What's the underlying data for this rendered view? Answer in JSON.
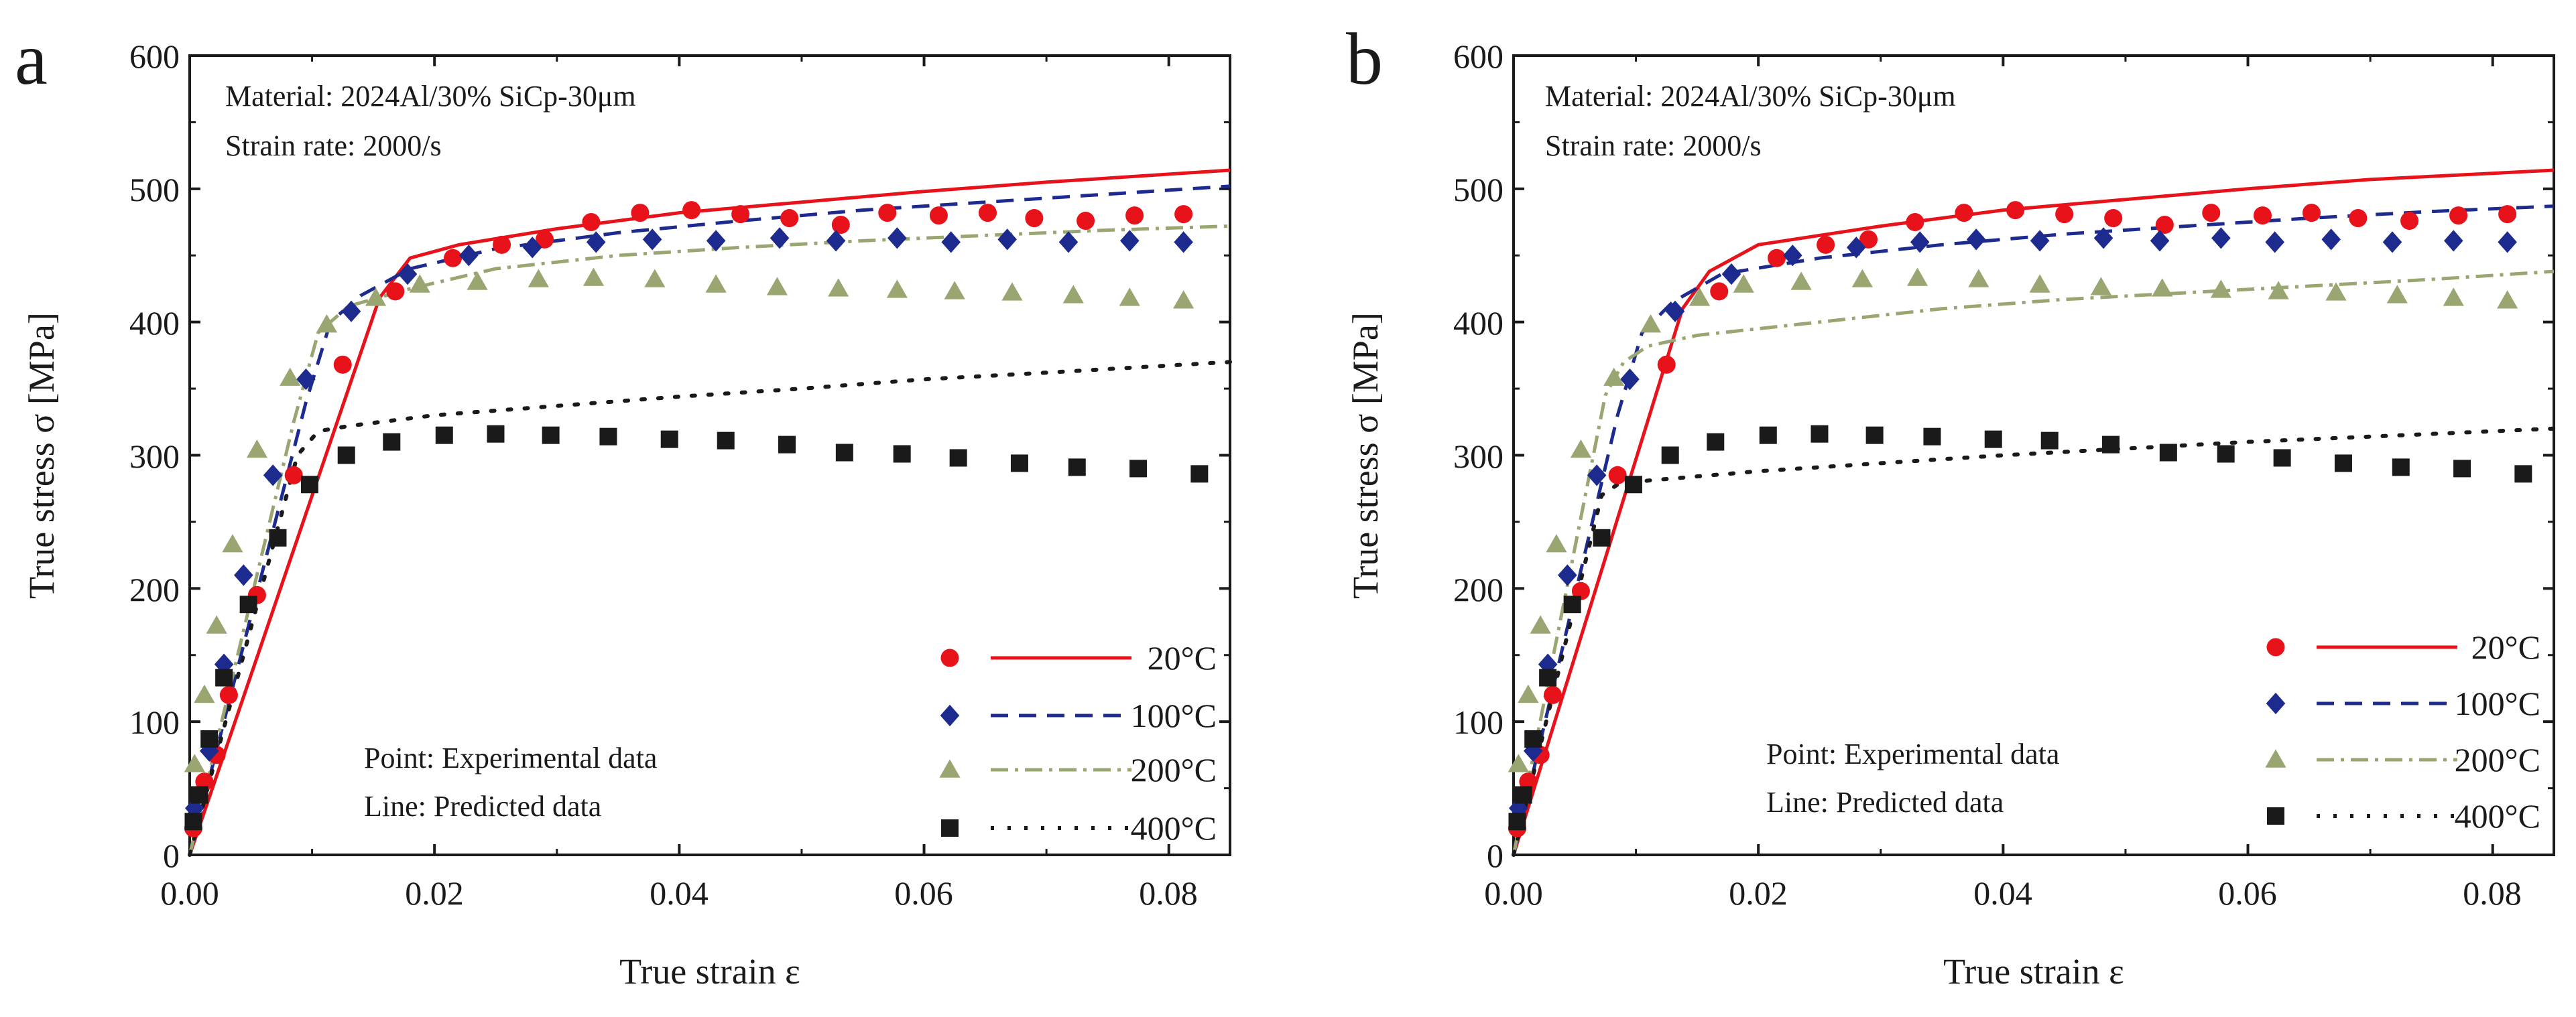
{
  "colors": {
    "c20": "#e8121b",
    "c100": "#1d2b8f",
    "c200": "#9aa672",
    "c400": "#1a1a1a",
    "axis": "#1a1a1a"
  },
  "chart_data": [
    {
      "panel": "a",
      "type": "scatter+line",
      "xlabel": "True strain ε",
      "ylabel": "True stress σ [MPa]",
      "xlim": [
        0,
        0.085
      ],
      "ylim": [
        0,
        600
      ],
      "xticks": [
        "0.00",
        "0.02",
        "0.04",
        "0.06",
        "0.08"
      ],
      "yticks": [
        "0",
        "100",
        "200",
        "300",
        "400",
        "500",
        "600"
      ],
      "annotations": [
        "Material: 2024Al/30% SiCp-30μm",
        "Strain rate: 2000/s"
      ],
      "notes": [
        "Point: Experimental data",
        "Line: Predicted data"
      ],
      "legend": [
        "20°C",
        "100°C",
        "200°C",
        "400°C"
      ],
      "experimental": [
        {
          "name": "20°C",
          "marker": "circle",
          "x": [
            0.0003,
            0.0012,
            0.0022,
            0.0032,
            0.0055,
            0.0085,
            0.0125,
            0.0168,
            0.0215,
            0.0255,
            0.029,
            0.0328,
            0.0368,
            0.041,
            0.045,
            0.049,
            0.0532,
            0.057,
            0.0612,
            0.0652,
            0.069,
            0.0732,
            0.0772,
            0.0812
          ],
          "y": [
            20,
            55,
            75,
            120,
            195,
            285,
            368,
            423,
            448,
            458,
            462,
            475,
            482,
            484,
            481,
            478,
            473,
            482,
            480,
            482,
            478,
            476,
            480,
            481
          ]
        },
        {
          "name": "100°C",
          "marker": "diamond",
          "x": [
            0.0004,
            0.0016,
            0.0028,
            0.0044,
            0.0068,
            0.0095,
            0.0132,
            0.0178,
            0.0228,
            0.028,
            0.0332,
            0.0378,
            0.043,
            0.0482,
            0.0528,
            0.0578,
            0.0622,
            0.0668,
            0.0718,
            0.0768,
            0.0812
          ],
          "y": [
            35,
            78,
            143,
            210,
            285,
            357,
            408,
            436,
            450,
            456,
            460,
            462,
            461,
            463,
            461,
            463,
            460,
            462,
            460,
            461,
            460
          ]
        },
        {
          "name": "200°C",
          "marker": "triangle",
          "x": [
            0.0004,
            0.0012,
            0.0022,
            0.0035,
            0.0055,
            0.0082,
            0.0112,
            0.0152,
            0.0188,
            0.0235,
            0.0285,
            0.033,
            0.038,
            0.043,
            0.048,
            0.053,
            0.0578,
            0.0625,
            0.0672,
            0.0722,
            0.0768,
            0.0812
          ],
          "y": [
            68,
            120,
            172,
            233,
            304,
            358,
            398,
            418,
            428,
            430,
            432,
            433,
            432,
            428,
            426,
            425,
            424,
            423,
            422,
            420,
            418,
            416
          ]
        },
        {
          "name": "400°C",
          "marker": "square",
          "x": [
            0.0003,
            0.0008,
            0.0016,
            0.0028,
            0.0048,
            0.0072,
            0.0098,
            0.0128,
            0.0165,
            0.0208,
            0.025,
            0.0295,
            0.0342,
            0.0392,
            0.0438,
            0.0488,
            0.0535,
            0.0582,
            0.0628,
            0.0678,
            0.0725,
            0.0775,
            0.0825
          ],
          "y": [
            25,
            45,
            87,
            133,
            188,
            238,
            278,
            300,
            310,
            315,
            316,
            315,
            314,
            312,
            311,
            308,
            302,
            301,
            298,
            294,
            291,
            290,
            286
          ]
        }
      ],
      "predicted": [
        {
          "name": "20°C",
          "style": "solid",
          "x": [
            0,
            0.0155,
            0.018,
            0.022,
            0.03,
            0.04,
            0.05,
            0.06,
            0.07,
            0.085
          ],
          "y": [
            0,
            418,
            448,
            458,
            470,
            482,
            490,
            498,
            505,
            514
          ]
        },
        {
          "name": "100°C",
          "style": "dashed",
          "x": [
            0,
            0.0095,
            0.0115,
            0.014,
            0.018,
            0.025,
            0.035,
            0.045,
            0.055,
            0.065,
            0.075,
            0.085
          ],
          "y": [
            0,
            340,
            400,
            420,
            440,
            455,
            467,
            476,
            484,
            490,
            496,
            502
          ]
        },
        {
          "name": "200°C",
          "style": "dashdot",
          "x": [
            0,
            0.0085,
            0.0105,
            0.013,
            0.018,
            0.025,
            0.035,
            0.045,
            0.055,
            0.065,
            0.075,
            0.085
          ],
          "y": [
            0,
            325,
            392,
            412,
            425,
            440,
            450,
            456,
            461,
            465,
            469,
            472
          ]
        },
        {
          "name": "400°C",
          "style": "dotted",
          "x": [
            0,
            0.0088,
            0.0105,
            0.013,
            0.02,
            0.03,
            0.04,
            0.05,
            0.06,
            0.07,
            0.085
          ],
          "y": [
            0,
            300,
            318,
            322,
            330,
            337,
            344,
            350,
            357,
            362,
            370
          ]
        }
      ]
    },
    {
      "panel": "b",
      "type": "scatter+line",
      "xlabel": "True strain ε",
      "ylabel": "True stress σ [MPa]",
      "xlim": [
        0,
        0.085
      ],
      "ylim": [
        0,
        600
      ],
      "xticks": [
        "0.00",
        "0.02",
        "0.04",
        "0.06",
        "0.08"
      ],
      "yticks": [
        "0",
        "100",
        "200",
        "300",
        "400",
        "500",
        "600"
      ],
      "annotations": [
        "Material: 2024Al/30% SiCp-30μm",
        "Strain rate: 2000/s"
      ],
      "notes": [
        "Point: Experimental data",
        "Line: Predicted data"
      ],
      "legend": [
        "20°C",
        "100°C",
        "200°C",
        "400°C"
      ],
      "experimental": [
        {
          "name": "20°C",
          "marker": "circle",
          "x": [
            0.0003,
            0.0012,
            0.0022,
            0.0032,
            0.0055,
            0.0085,
            0.0125,
            0.0168,
            0.0215,
            0.0255,
            0.029,
            0.0328,
            0.0368,
            0.041,
            0.045,
            0.049,
            0.0532,
            0.057,
            0.0612,
            0.0652,
            0.069,
            0.0732,
            0.0772,
            0.0812
          ],
          "y": [
            20,
            55,
            75,
            120,
            198,
            285,
            368,
            423,
            448,
            458,
            462,
            475,
            482,
            484,
            481,
            478,
            473,
            482,
            480,
            482,
            478,
            476,
            480,
            481
          ]
        },
        {
          "name": "100°C",
          "marker": "diamond",
          "x": [
            0.0004,
            0.0016,
            0.0028,
            0.0044,
            0.0068,
            0.0095,
            0.0132,
            0.0178,
            0.0228,
            0.028,
            0.0332,
            0.0378,
            0.043,
            0.0482,
            0.0528,
            0.0578,
            0.0622,
            0.0668,
            0.0718,
            0.0768,
            0.0812
          ],
          "y": [
            35,
            78,
            143,
            210,
            285,
            357,
            408,
            436,
            450,
            456,
            460,
            462,
            461,
            463,
            461,
            463,
            460,
            462,
            460,
            461,
            460
          ]
        },
        {
          "name": "200°C",
          "marker": "triangle",
          "x": [
            0.0004,
            0.0012,
            0.0022,
            0.0035,
            0.0055,
            0.0082,
            0.0112,
            0.0152,
            0.0188,
            0.0235,
            0.0285,
            0.033,
            0.038,
            0.043,
            0.048,
            0.053,
            0.0578,
            0.0625,
            0.0672,
            0.0722,
            0.0768,
            0.0812
          ],
          "y": [
            68,
            120,
            172,
            233,
            304,
            358,
            398,
            418,
            428,
            430,
            432,
            433,
            432,
            428,
            426,
            425,
            424,
            423,
            422,
            420,
            418,
            416
          ]
        },
        {
          "name": "400°C",
          "marker": "square",
          "x": [
            0.0003,
            0.0008,
            0.0016,
            0.0028,
            0.0048,
            0.0072,
            0.0098,
            0.0128,
            0.0165,
            0.0208,
            0.025,
            0.0295,
            0.0342,
            0.0392,
            0.0438,
            0.0488,
            0.0535,
            0.0582,
            0.0628,
            0.0678,
            0.0725,
            0.0775,
            0.0825
          ],
          "y": [
            25,
            45,
            87,
            133,
            188,
            238,
            278,
            300,
            310,
            315,
            316,
            315,
            314,
            312,
            311,
            308,
            302,
            301,
            298,
            294,
            291,
            290,
            286
          ]
        }
      ],
      "predicted": [
        {
          "name": "20°C",
          "style": "solid",
          "x": [
            0,
            0.0138,
            0.016,
            0.02,
            0.03,
            0.04,
            0.05,
            0.06,
            0.07,
            0.085
          ],
          "y": [
            0,
            410,
            438,
            458,
            472,
            484,
            492,
            500,
            507,
            514
          ]
        },
        {
          "name": "100°C",
          "style": "dashed",
          "x": [
            0,
            0.0085,
            0.0105,
            0.013,
            0.017,
            0.025,
            0.035,
            0.045,
            0.055,
            0.065,
            0.075,
            0.085
          ],
          "y": [
            0,
            330,
            392,
            415,
            436,
            448,
            458,
            466,
            472,
            478,
            483,
            487
          ]
        },
        {
          "name": "200°C",
          "style": "dashdot",
          "x": [
            0,
            0.0075,
            0.009,
            0.011,
            0.015,
            0.025,
            0.035,
            0.045,
            0.055,
            0.065,
            0.075,
            0.085
          ],
          "y": [
            0,
            345,
            370,
            382,
            390,
            400,
            410,
            417,
            422,
            427,
            432,
            438
          ]
        },
        {
          "name": "400°C",
          "style": "dotted",
          "x": [
            0,
            0.0072,
            0.0085,
            0.011,
            0.02,
            0.03,
            0.04,
            0.05,
            0.06,
            0.07,
            0.085
          ],
          "y": [
            0,
            270,
            278,
            281,
            288,
            294,
            300,
            305,
            310,
            314,
            320
          ]
        }
      ]
    }
  ]
}
